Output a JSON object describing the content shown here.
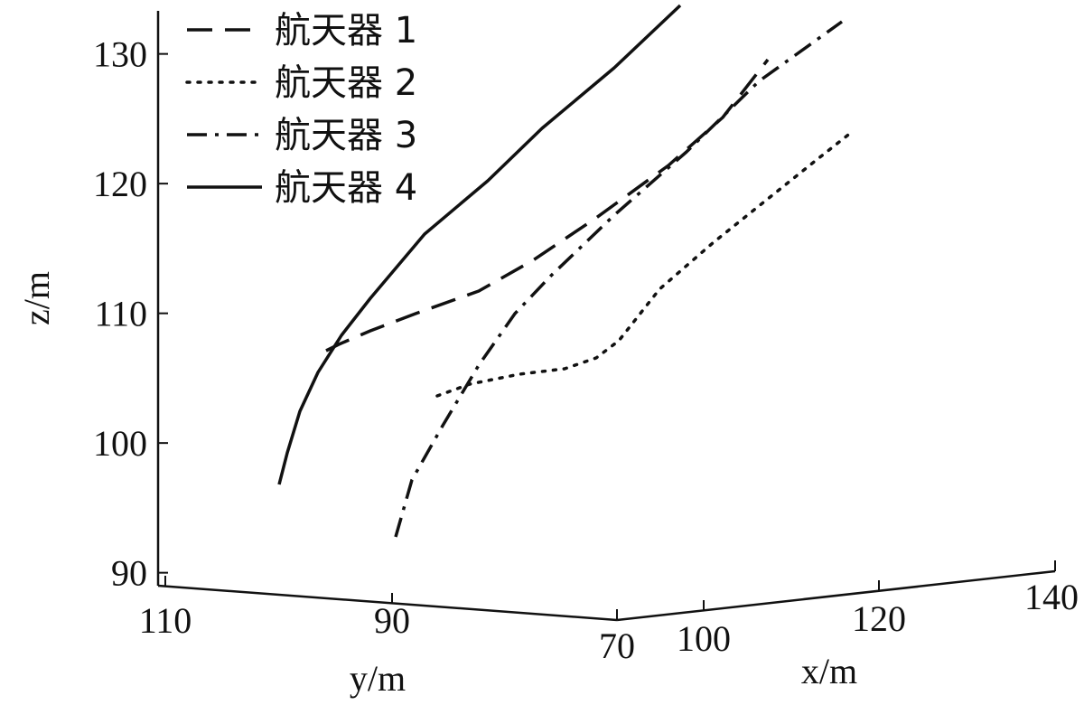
{
  "chart_data": {
    "type": "line",
    "projection": "3d",
    "xlabel": "x/m",
    "ylabel": "y/m",
    "zlabel": "z/m",
    "x_ticks": [
      70,
      100,
      120,
      140
    ],
    "y_ticks": [
      110,
      90,
      70
    ],
    "z_ticks": [
      90,
      100,
      110,
      120,
      130
    ],
    "xlim": [
      90,
      140
    ],
    "ylim": [
      70,
      110
    ],
    "zlim": [
      89,
      133
    ],
    "grid": false,
    "legend_position": "top-left",
    "series": [
      {
        "name": "航天器 1",
        "style": "dashed",
        "points": [
          {
            "x": 108,
            "y": 100,
            "z": 97
          },
          {
            "x": 110,
            "y": 95,
            "z": 103
          },
          {
            "x": 115,
            "y": 90,
            "z": 108
          },
          {
            "x": 120,
            "y": 83,
            "z": 115
          },
          {
            "x": 125,
            "y": 80,
            "z": 122
          }
        ]
      },
      {
        "name": "航天器 2",
        "style": "dotted",
        "points": [
          {
            "x": 120,
            "y": 95,
            "z": 96
          },
          {
            "x": 123,
            "y": 86,
            "z": 99
          },
          {
            "x": 126,
            "y": 80,
            "z": 102
          },
          {
            "x": 130,
            "y": 78,
            "z": 110
          },
          {
            "x": 136,
            "y": 76,
            "z": 118
          }
        ]
      },
      {
        "name": "航天器 3",
        "style": "dashdot",
        "points": [
          {
            "x": 112,
            "y": 90,
            "z": 83
          },
          {
            "x": 115,
            "y": 87,
            "z": 91
          },
          {
            "x": 119,
            "y": 82,
            "z": 104
          },
          {
            "x": 125,
            "y": 76,
            "z": 117
          },
          {
            "x": 132,
            "y": 70,
            "z": 126
          }
        ]
      },
      {
        "name": "航天器 4",
        "style": "solid",
        "points": [
          {
            "x": 95,
            "y": 110,
            "z": 90
          },
          {
            "x": 98,
            "y": 104,
            "z": 103
          },
          {
            "x": 103,
            "y": 97,
            "z": 114
          },
          {
            "x": 108,
            "y": 91,
            "z": 122
          },
          {
            "x": 113,
            "y": 87,
            "z": 128
          }
        ]
      }
    ]
  }
}
